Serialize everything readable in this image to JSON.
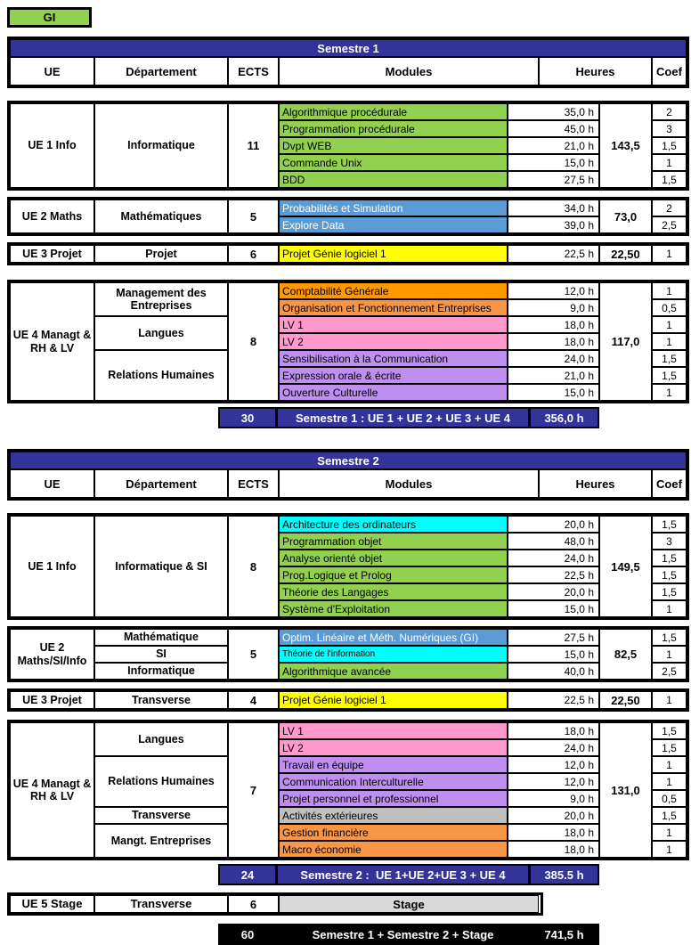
{
  "badge": {
    "label": "GI"
  },
  "colors": {
    "navy": "#333399",
    "green": "#92D050",
    "blue": "#5B9BD5",
    "cyan": "#00FFFF",
    "yellow": "#FFFF00",
    "orange": "#FF9900",
    "orange_light": "#F79646",
    "pink": "#FF99CC",
    "purple": "#BE8FEF",
    "gray": "#BFBFBF",
    "stage_gray": "#D9D9D9"
  },
  "column_labels": {
    "ue": "UE",
    "departement": "Département",
    "ects": "ECTS",
    "modules": "Modules",
    "heures": "Heures",
    "coef": "Coef"
  },
  "semesters": [
    {
      "title": "Semestre 1",
      "blocks": [
        {
          "ue": "UE 1 Info",
          "departments": [
            {
              "label": "Informatique",
              "rows": 5
            }
          ],
          "ects": "11",
          "total": "143,5",
          "modules": [
            {
              "name": "Algorithmique procédurale",
              "hours": "35,0 h",
              "coef": "2",
              "color": "green"
            },
            {
              "name": "Programmation procédurale",
              "hours": "45,0 h",
              "coef": "3",
              "color": "green"
            },
            {
              "name": "Dvpt WEB",
              "hours": "21,0 h",
              "coef": "1,5",
              "color": "green"
            },
            {
              "name": "Commande Unix",
              "hours": "15,0 h",
              "coef": "1",
              "color": "green"
            },
            {
              "name": "BDD",
              "hours": "27,5 h",
              "coef": "1,5",
              "color": "green"
            }
          ]
        },
        {
          "ue": "UE 2 Maths",
          "departments": [
            {
              "label": "Mathématiques",
              "rows": 2
            }
          ],
          "ects": "5",
          "total": "73,0",
          "modules": [
            {
              "name": "Probabilités et Simulation",
              "hours": "34,0 h",
              "coef": "2",
              "color": "blue",
              "white": true
            },
            {
              "name": "Explore Data",
              "hours": "39,0 h",
              "coef": "2,5",
              "color": "blue",
              "white": true
            }
          ]
        },
        {
          "ue": "UE 3 Projet",
          "departments": [
            {
              "label": "Projet",
              "rows": 1
            }
          ],
          "ects": "6",
          "total": "22,50",
          "modules": [
            {
              "name": "Projet Génie logiciel 1",
              "hours": "22,5 h",
              "coef": "1",
              "color": "yellow"
            }
          ]
        },
        {
          "ue": "UE 4 Managt & RH & LV",
          "departments": [
            {
              "label": "Management des Entreprises",
              "rows": 2
            },
            {
              "label": "Langues",
              "rows": 2
            },
            {
              "label": "Relations Humaines",
              "rows": 3
            }
          ],
          "ects": "8",
          "total": "117,0",
          "modules": [
            {
              "name": "Comptabilité Générale",
              "hours": "12,0 h",
              "coef": "1",
              "color": "orange"
            },
            {
              "name": "Organisation et Fonctionnement Entreprises",
              "hours": "9,0 h",
              "coef": "0,5",
              "color": "orange_light"
            },
            {
              "name": "LV 1",
              "hours": "18,0 h",
              "coef": "1",
              "color": "pink"
            },
            {
              "name": "LV 2",
              "hours": "18,0 h",
              "coef": "1",
              "color": "pink"
            },
            {
              "name": "Sensibilisation à la Communication",
              "hours": "24,0 h",
              "coef": "1,5",
              "color": "purple"
            },
            {
              "name": "Expression orale & écrite",
              "hours": "21,0 h",
              "coef": "1,5",
              "color": "purple"
            },
            {
              "name": "Ouverture Culturelle",
              "hours": "15,0 h",
              "coef": "1",
              "color": "purple"
            }
          ]
        }
      ],
      "summary": {
        "ects": "30",
        "label": "Semestre 1 : UE 1 + UE 2 + UE 3 + UE 4",
        "hours": "356,0 h"
      }
    },
    {
      "title": "Semestre 2",
      "blocks": [
        {
          "ue": "UE 1 Info",
          "departments": [
            {
              "label": "Informatique & SI",
              "rows": 6
            }
          ],
          "ects": "8",
          "total": "149,5",
          "modules": [
            {
              "name": "Architecture des ordinateurs",
              "hours": "20,0 h",
              "coef": "1,5",
              "color": "cyan"
            },
            {
              "name": "Programmation objet",
              "hours": "48,0 h",
              "coef": "3",
              "color": "green"
            },
            {
              "name": "Analyse orienté objet",
              "hours": "24,0 h",
              "coef": "1,5",
              "color": "green"
            },
            {
              "name": "Prog.Logique et Prolog",
              "hours": "22,5 h",
              "coef": "1,5",
              "color": "green"
            },
            {
              "name": "Théorie des Langages",
              "hours": "20,0 h",
              "coef": "1,5",
              "color": "green"
            },
            {
              "name": "Système d'Exploitation",
              "hours": "15,0 h",
              "coef": "1",
              "color": "green"
            }
          ]
        },
        {
          "ue": "UE 2 Maths/SI/Info",
          "departments": [
            {
              "label": "Mathématique",
              "rows": 1
            },
            {
              "label": "SI",
              "rows": 1
            },
            {
              "label": "Informatique",
              "rows": 1
            }
          ],
          "ects": "5",
          "total": "82,5",
          "modules": [
            {
              "name": "Optim. Linéaire et Méth. Numériques (GI)",
              "hours": "27,5 h",
              "coef": "1,5",
              "color": "blue",
              "white": true
            },
            {
              "name": "Théorie de l'information",
              "hours": "15,0 h",
              "coef": "1",
              "color": "cyan",
              "small": true
            },
            {
              "name": "Algorithmique avancée",
              "hours": "40,0 h",
              "coef": "2,5",
              "color": "green"
            }
          ]
        },
        {
          "ue": "UE 3 Projet",
          "departments": [
            {
              "label": "Transverse",
              "rows": 1
            }
          ],
          "ects": "4",
          "total": "22,50",
          "modules": [
            {
              "name": "Projet Génie logiciel 1",
              "hours": "22,5 h",
              "coef": "1",
              "color": "yellow"
            }
          ]
        },
        {
          "ue": "UE 4 Managt & RH & LV",
          "departments": [
            {
              "label": "Langues",
              "rows": 2
            },
            {
              "label": "Relations Humaines",
              "rows": 3
            },
            {
              "label": "Transverse",
              "rows": 1
            },
            {
              "label": "Mangt. Entreprises",
              "rows": 2
            }
          ],
          "ects": "7",
          "total": "131,0",
          "modules": [
            {
              "name": "LV 1",
              "hours": "18,0 h",
              "coef": "1,5",
              "color": "pink"
            },
            {
              "name": "LV 2",
              "hours": "24,0 h",
              "coef": "1,5",
              "color": "pink"
            },
            {
              "name": "Travail en équipe",
              "hours": "12,0 h",
              "coef": "1",
              "color": "purple"
            },
            {
              "name": "Communication Interculturelle",
              "hours": "12,0 h",
              "coef": "1",
              "color": "purple"
            },
            {
              "name": "Projet personnel et professionnel",
              "hours": "9,0 h",
              "coef": "0,5",
              "color": "purple"
            },
            {
              "name": "Activités extérieures",
              "hours": "20,0 h",
              "coef": "1,5",
              "color": "gray"
            },
            {
              "name": "Gestion financière",
              "hours": "18,0 h",
              "coef": "1",
              "color": "orange_light"
            },
            {
              "name": "Macro économie",
              "hours": "18,0 h",
              "coef": "1",
              "color": "orange_light"
            }
          ]
        }
      ],
      "summary": {
        "ects": "24",
        "label": "Semestre 2 :  UE 1+UE 2+UE 3 + UE 4",
        "hours": "385.5 h"
      }
    }
  ],
  "stage_row": {
    "ue": "UE 5 Stage",
    "departement": "Transverse",
    "ects": "6",
    "label": "Stage"
  },
  "grand_total": {
    "ects": "60",
    "label": "Semestre 1 + Semestre 2 + Stage",
    "hours": "741,5 h"
  }
}
